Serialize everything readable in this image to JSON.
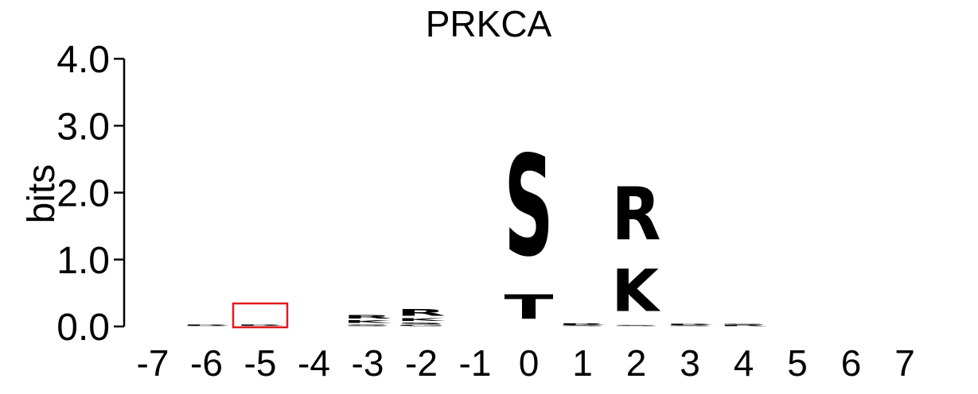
{
  "chart_data": {
    "type": "sequence-logo",
    "title": "PRKCA",
    "ylabel": "bits",
    "ylim": [
      0,
      4.0
    ],
    "yticks": [
      "0.0",
      "1.0",
      "2.0",
      "3.0",
      "4.0"
    ],
    "positions": [
      "-7",
      "-6",
      "-5",
      "-4",
      "-3",
      "-2",
      "-1",
      "0",
      "1",
      "2",
      "3",
      "4",
      "5",
      "6",
      "7"
    ],
    "colors": {
      "basic": "#0b47c9",
      "polar": "#0a8a4a",
      "neutral": "#666666",
      "acidic": "#c21a1a",
      "highlight": "#e31a1c"
    },
    "columns": [
      {
        "position": "-7",
        "letters": []
      },
      {
        "position": "-6",
        "letters": [
          {
            "aa": "S",
            "bits": 0.01,
            "color": "#0a8a4a"
          },
          {
            "aa": "R",
            "bits": 0.02,
            "color": "#0b47c9"
          }
        ]
      },
      {
        "position": "-5",
        "letters": [
          {
            "aa": "S",
            "bits": 0.01,
            "color": "#0a8a4a"
          },
          {
            "aa": "R",
            "bits": 0.02,
            "color": "#0b47c9"
          }
        ]
      },
      {
        "position": "-4",
        "letters": []
      },
      {
        "position": "-3",
        "letters": [
          {
            "aa": "S",
            "bits": 0.04,
            "color": "#0a8a4a"
          },
          {
            "aa": "K",
            "bits": 0.06,
            "color": "#0b47c9"
          },
          {
            "aa": "R",
            "bits": 0.09,
            "color": "#0b47c9"
          }
        ]
      },
      {
        "position": "-2",
        "letters": [
          {
            "aa": "G",
            "bits": 0.03,
            "color": "#0a8a4a"
          },
          {
            "aa": "S",
            "bits": 0.04,
            "color": "#0a8a4a"
          },
          {
            "aa": "K",
            "bits": 0.06,
            "color": "#0b47c9"
          },
          {
            "aa": "R",
            "bits": 0.16,
            "color": "#0b47c9"
          }
        ]
      },
      {
        "position": "-1",
        "letters": []
      },
      {
        "position": "0",
        "letters": [
          {
            "aa": "T",
            "bits": 0.58,
            "color": "#0a8a4a"
          },
          {
            "aa": "S",
            "bits": 2.42,
            "color": "#0a8a4a"
          }
        ]
      },
      {
        "position": "1",
        "letters": [
          {
            "aa": "S",
            "bits": 0.02,
            "color": "#0a8a4a"
          },
          {
            "aa": "R",
            "bits": 0.03,
            "color": "#0b47c9"
          }
        ]
      },
      {
        "position": "2",
        "letters": [
          {
            "aa": "S",
            "bits": 0.02,
            "color": "#0a8a4a"
          },
          {
            "aa": "K",
            "bits": 1.02,
            "color": "#0b47c9"
          },
          {
            "aa": "R",
            "bits": 1.28,
            "color": "#0b47c9"
          }
        ]
      },
      {
        "position": "3",
        "letters": [
          {
            "aa": "S",
            "bits": 0.02,
            "color": "#0a8a4a"
          },
          {
            "aa": "R",
            "bits": 0.02,
            "color": "#0b47c9"
          }
        ]
      },
      {
        "position": "4",
        "letters": [
          {
            "aa": "R",
            "bits": 0.02,
            "color": "#0b47c9"
          },
          {
            "aa": "S",
            "bits": 0.02,
            "color": "#0a8a4a"
          }
        ]
      },
      {
        "position": "5",
        "letters": []
      },
      {
        "position": "6",
        "letters": []
      },
      {
        "position": "7",
        "letters": []
      }
    ],
    "highlight_position": "-5",
    "grid": false,
    "legend": "none"
  }
}
